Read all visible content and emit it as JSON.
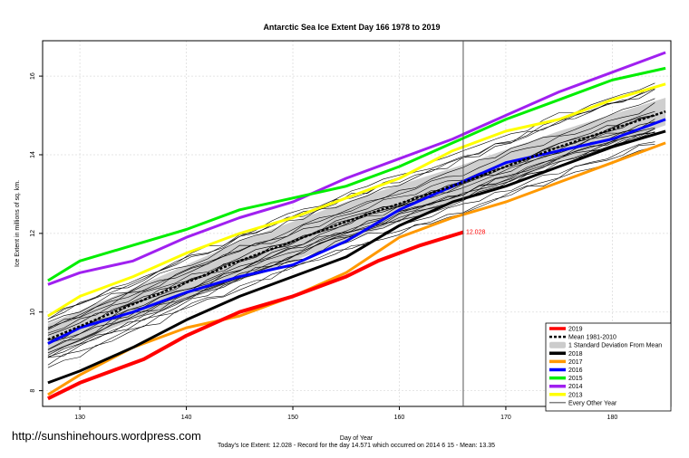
{
  "chart_data": {
    "type": "line",
    "title": "Antarctic Sea Ice Extent Day 166 1978 to 2019",
    "xlabel": "Day of Year",
    "ylabel": "Ice Extent in millions of sq. km.",
    "xlim": [
      126.5,
      185.5
    ],
    "ylim": [
      7.6,
      16.9
    ],
    "xticks": [
      130,
      140,
      150,
      160,
      170,
      180
    ],
    "yticks": [
      8,
      10,
      12,
      14,
      16
    ],
    "grid": true,
    "current_day": 166,
    "end_label": "12.028",
    "legend_position": "bottom-right",
    "legend": [
      {
        "label": "2019",
        "color": "#ff0000",
        "style": "thick"
      },
      {
        "label": "Mean 1981-2010",
        "color": "#000000",
        "style": "dotted"
      },
      {
        "label": "1 Standard Deviation From Mean",
        "color": "#cccccc",
        "style": "band"
      },
      {
        "label": "2018",
        "color": "#000000",
        "style": "thick"
      },
      {
        "label": "2017",
        "color": "#ff9900",
        "style": "thick"
      },
      {
        "label": "2016",
        "color": "#0000ff",
        "style": "thick"
      },
      {
        "label": "2015",
        "color": "#00ee00",
        "style": "thick"
      },
      {
        "label": "2014",
        "color": "#a020f0",
        "style": "thick"
      },
      {
        "label": "2013",
        "color": "#ffff00",
        "style": "thick"
      },
      {
        "label": "Every Other Year",
        "color": "#000000",
        "style": "thin"
      }
    ],
    "mean": {
      "x": [
        127,
        135,
        145,
        155,
        166,
        175,
        185
      ],
      "y": [
        9.3,
        10.2,
        11.3,
        12.3,
        13.3,
        14.2,
        15.1
      ]
    },
    "std_band": {
      "x": [
        127,
        135,
        145,
        155,
        166,
        175,
        185
      ],
      "upper": [
        9.7,
        10.6,
        11.8,
        12.8,
        13.75,
        14.6,
        15.45
      ],
      "lower": [
        8.9,
        9.8,
        10.8,
        11.8,
        12.85,
        13.8,
        14.75
      ]
    },
    "series": [
      {
        "name": "2019",
        "color": "#ff0000",
        "width": 4,
        "x": [
          127,
          130,
          133,
          136,
          140,
          145,
          150,
          155,
          158,
          162,
          166
        ],
        "y": [
          7.8,
          8.2,
          8.5,
          8.8,
          9.4,
          10.0,
          10.4,
          10.9,
          11.3,
          11.7,
          12.028
        ]
      },
      {
        "name": "2018",
        "color": "#000000",
        "width": 3,
        "x": [
          127,
          130,
          135,
          140,
          145,
          150,
          155,
          160,
          165,
          170,
          175,
          180,
          185
        ],
        "y": [
          8.2,
          8.5,
          9.1,
          9.8,
          10.4,
          10.9,
          11.4,
          12.2,
          12.8,
          13.2,
          13.7,
          14.2,
          14.6
        ]
      },
      {
        "name": "2017",
        "color": "#ff9900",
        "width": 3,
        "x": [
          127,
          130,
          135,
          140,
          145,
          150,
          155,
          160,
          165,
          170,
          175,
          180,
          185
        ],
        "y": [
          7.9,
          8.4,
          9.1,
          9.6,
          9.9,
          10.4,
          11.0,
          11.9,
          12.4,
          12.8,
          13.3,
          13.8,
          14.3
        ]
      },
      {
        "name": "2016",
        "color": "#0000ff",
        "width": 3,
        "x": [
          127,
          130,
          135,
          140,
          145,
          150,
          155,
          160,
          165,
          170,
          175,
          180,
          185
        ],
        "y": [
          9.2,
          9.6,
          10.0,
          10.5,
          10.9,
          11.2,
          11.8,
          12.6,
          13.2,
          13.8,
          14.1,
          14.4,
          14.9
        ]
      },
      {
        "name": "2015",
        "color": "#00ee00",
        "width": 3,
        "x": [
          127,
          130,
          135,
          140,
          145,
          150,
          155,
          160,
          165,
          170,
          175,
          180,
          185
        ],
        "y": [
          10.8,
          11.3,
          11.7,
          12.1,
          12.6,
          12.9,
          13.2,
          13.7,
          14.3,
          14.9,
          15.4,
          15.9,
          16.2
        ]
      },
      {
        "name": "2014",
        "color": "#a020f0",
        "width": 3,
        "x": [
          127,
          130,
          135,
          140,
          145,
          150,
          155,
          160,
          165,
          170,
          175,
          180,
          185
        ],
        "y": [
          10.7,
          11.0,
          11.3,
          11.9,
          12.4,
          12.8,
          13.4,
          13.9,
          14.4,
          15.0,
          15.6,
          16.1,
          16.6
        ]
      },
      {
        "name": "2013",
        "color": "#ffff00",
        "width": 3,
        "x": [
          127,
          130,
          135,
          140,
          145,
          150,
          155,
          160,
          165,
          170,
          175,
          180,
          185
        ],
        "y": [
          9.9,
          10.4,
          10.9,
          11.5,
          12.0,
          12.4,
          12.9,
          13.4,
          14.1,
          14.6,
          14.9,
          15.4,
          15.8
        ]
      }
    ],
    "watermark": "http://sunshinehours.wordpress.com",
    "footer": "Today's Ice Extent: 12.028  - Record for the day  14.571 which occurred on 2014 6 15  - Mean: 13.35"
  }
}
